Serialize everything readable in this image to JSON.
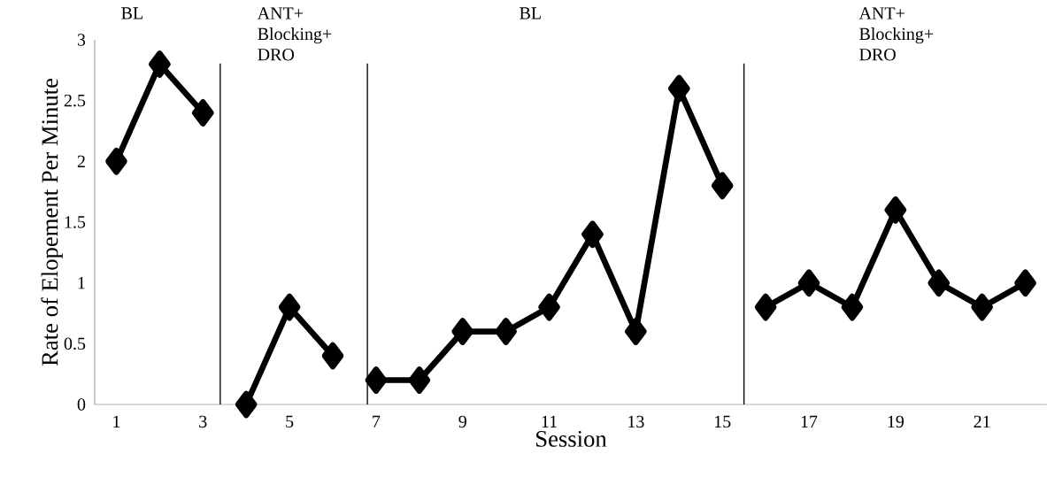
{
  "chart_data": {
    "type": "line",
    "xlabel": "Session",
    "ylabel": "Rate of Elopement Per Minute",
    "x": [
      1,
      2,
      3,
      4,
      5,
      6,
      7,
      8,
      9,
      10,
      11,
      12,
      13,
      14,
      15,
      16,
      17,
      18,
      19,
      20,
      21,
      22
    ],
    "series": [
      {
        "color": "#000000",
        "values": [
          2.0,
          2.8,
          2.4,
          null,
          null,
          null,
          null,
          null,
          null,
          null,
          null,
          null,
          null,
          null,
          null,
          null,
          null,
          null,
          null,
          null,
          null,
          null
        ]
      },
      {
        "color": "#000000",
        "values": [
          null,
          null,
          null,
          0.0,
          0.8,
          0.4,
          null,
          null,
          null,
          null,
          null,
          null,
          null,
          null,
          null,
          null,
          null,
          null,
          null,
          null,
          null,
          null
        ]
      },
      {
        "color": "#000000",
        "values": [
          null,
          null,
          null,
          null,
          null,
          null,
          0.2,
          0.2,
          0.6,
          0.6,
          0.8,
          1.4,
          0.6,
          2.6,
          1.8,
          null,
          null,
          null,
          null,
          null,
          null,
          null
        ]
      },
      {
        "color": "#000000",
        "values": [
          null,
          null,
          null,
          null,
          null,
          null,
          null,
          null,
          null,
          null,
          null,
          null,
          null,
          null,
          null,
          0.8,
          1.0,
          0.8,
          1.6,
          1.0,
          0.8,
          1.0
        ]
      }
    ],
    "xlim": [
      0.5,
      22.5
    ],
    "xticks": [
      1,
      3,
      5,
      7,
      9,
      11,
      13,
      15,
      17,
      19,
      21
    ],
    "ylim": [
      0,
      3
    ],
    "yticks": [
      0,
      0.5,
      1,
      1.5,
      2,
      2.5,
      3
    ],
    "ref_lines": [
      {
        "axis": "x",
        "value": 3.4,
        "color": "#000000"
      },
      {
        "axis": "x",
        "value": 6.8,
        "color": "#000000"
      },
      {
        "axis": "x",
        "value": 15.5,
        "color": "#000000"
      }
    ],
    "annotations": [
      "BL",
      "ANT+ Blocking+ DRO",
      "BL",
      "ANT+ Blocking+ DRO"
    ],
    "marker": "diamond",
    "line_style": "solid",
    "grid": false
  }
}
